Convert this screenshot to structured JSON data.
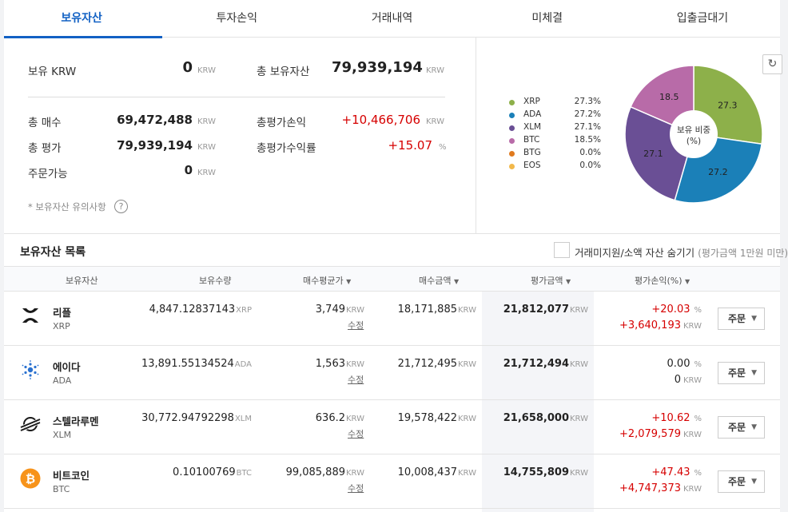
{
  "tabs": [
    "보유자산",
    "투자손익",
    "거래내역",
    "미체결",
    "입출금대기"
  ],
  "summary": {
    "krw_label": "보유 KRW",
    "krw_value": "0",
    "total_label": "총 보유자산",
    "total_value": "79,939,194",
    "buy_label": "총 매수",
    "buy_value": "69,472,488",
    "eval_label": "총 평가",
    "eval_value": "79,939,194",
    "avail_label": "주문가능",
    "avail_value": "0",
    "pl_label": "총평가손익",
    "pl_value": "+10,466,706",
    "rate_label": "총평가수익률",
    "rate_value": "+15.07",
    "unit": "KRW",
    "pct_unit": "%",
    "notice": "* 보유자산 유의사항",
    "help_icon": "?"
  },
  "chart_data": {
    "type": "pie",
    "title": "보유 비중",
    "subtitle": "(%)",
    "legend": [
      {
        "name": "XRP",
        "pct": "27.3%",
        "value": 27.3,
        "color": "#8db04a"
      },
      {
        "name": "ADA",
        "pct": "27.2%",
        "value": 27.2,
        "color": "#1b80b8"
      },
      {
        "name": "XLM",
        "pct": "27.1%",
        "value": 27.1,
        "color": "#6a4f95"
      },
      {
        "name": "BTC",
        "pct": "18.5%",
        "value": 18.5,
        "color": "#b86ba8"
      },
      {
        "name": "BTG",
        "pct": "0.0%",
        "value": 0.0,
        "color": "#e07a1e"
      },
      {
        "name": "EOS",
        "pct": "0.0%",
        "value": 0.0,
        "color": "#f2b84a"
      }
    ],
    "slice_labels": [
      "27.3",
      "27.2",
      "27.1",
      "18.5"
    ]
  },
  "refresh_icon": "↻",
  "list": {
    "title": "보유자산 목록",
    "hide_label": "거래미지원/소액 자산 숨기기",
    "hide_sub": "(평가금액 1만원 미만)",
    "headers": [
      "보유자산",
      "보유수량",
      "매수평균가",
      "매수금액",
      "평가금액",
      "평가손익(%)"
    ],
    "sort_arrow": "▼",
    "edit_label": "수정",
    "order_label": "주문",
    "order_caret": "▼",
    "rows": [
      {
        "name": "리플",
        "symbol": "XRP",
        "qty": "4,847.12837143",
        "avg": "3,749",
        "buy": "18,171,885",
        "eval": "21,812,077",
        "pct": "+20.03",
        "pl": "+3,640,193",
        "up": true
      },
      {
        "name": "에이다",
        "symbol": "ADA",
        "qty": "13,891.55134524",
        "avg": "1,563",
        "buy": "21,712,495",
        "eval": "21,712,494",
        "pct": "0.00",
        "pl": "0",
        "up": false
      },
      {
        "name": "스텔라루멘",
        "symbol": "XLM",
        "qty": "30,772.94792298",
        "avg": "636.2",
        "buy": "19,578,422",
        "eval": "21,658,000",
        "pct": "+10.62",
        "pl": "+2,079,579",
        "up": true
      },
      {
        "name": "비트코인",
        "symbol": "BTC",
        "qty": "0.10100769",
        "avg": "99,085,889",
        "buy": "10,008,437",
        "eval": "14,755,809",
        "pct": "+47.43",
        "pl": "+4,747,373",
        "up": true
      }
    ]
  },
  "colors": {
    "accent": "#1261c4",
    "rise": "#d60000",
    "btc": "#f7931a"
  }
}
